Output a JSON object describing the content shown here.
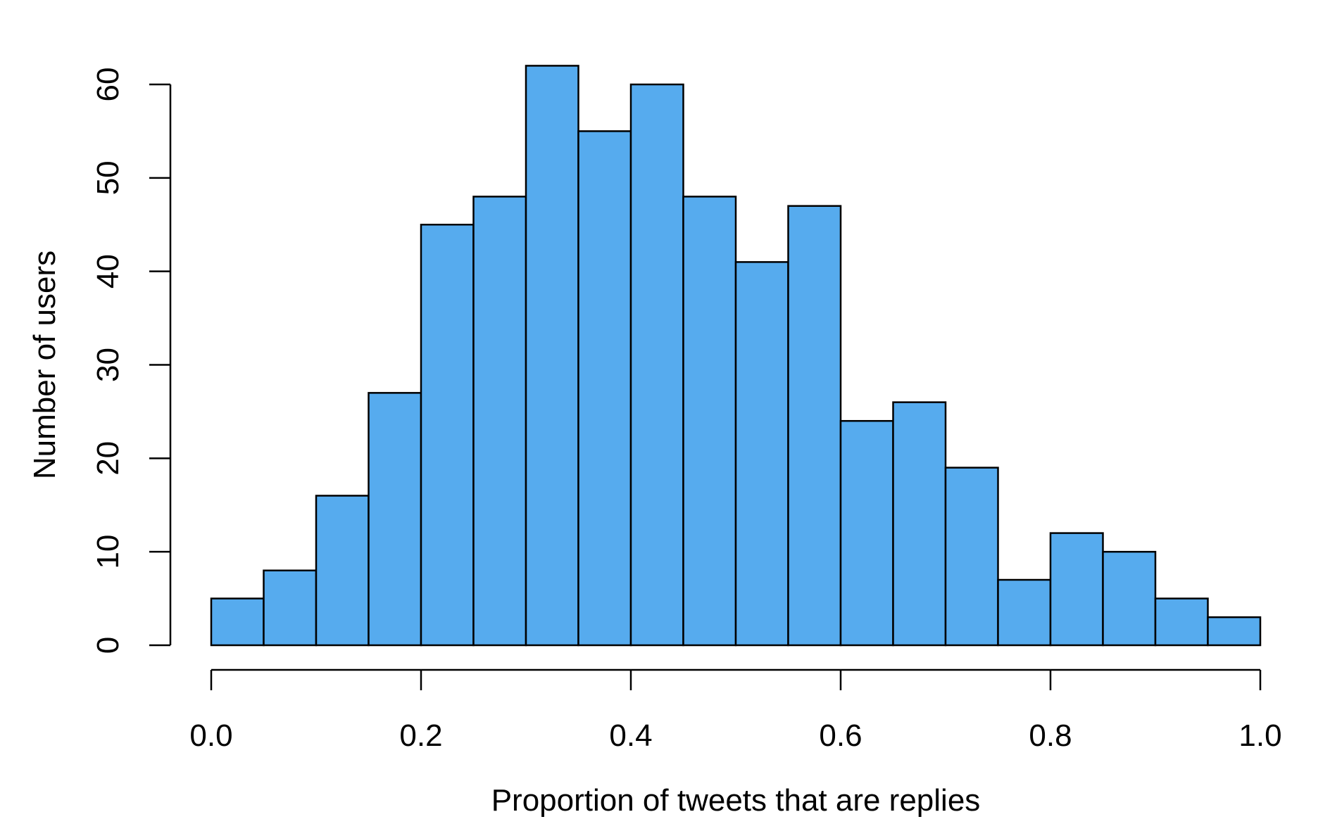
{
  "chart_data": {
    "type": "bar",
    "title": "",
    "xlabel": "Proportion of tweets that are replies",
    "ylabel": "Number of users",
    "bin_edges": [
      0.0,
      0.05,
      0.1,
      0.15,
      0.2,
      0.25,
      0.3,
      0.35,
      0.4,
      0.45,
      0.5,
      0.55,
      0.6,
      0.65,
      0.7,
      0.75,
      0.8,
      0.85,
      0.9,
      0.95,
      1.0
    ],
    "values": [
      5,
      8,
      16,
      27,
      45,
      48,
      62,
      55,
      60,
      48,
      41,
      47,
      24,
      26,
      19,
      7,
      12,
      10,
      5,
      3
    ],
    "xlim": [
      0.0,
      1.0
    ],
    "ylim": [
      0,
      60
    ],
    "x_ticks": [
      "0.0",
      "0.2",
      "0.4",
      "0.6",
      "0.8",
      "1.0"
    ],
    "x_tick_values": [
      0.0,
      0.2,
      0.4,
      0.6,
      0.8,
      1.0
    ],
    "y_ticks": [
      "0",
      "10",
      "20",
      "30",
      "40",
      "50",
      "60"
    ],
    "y_tick_values": [
      0,
      10,
      20,
      30,
      40,
      50,
      60
    ],
    "grid": false,
    "legend": "none",
    "bar_color": "#56ABEE",
    "edge_color": "#000000"
  }
}
